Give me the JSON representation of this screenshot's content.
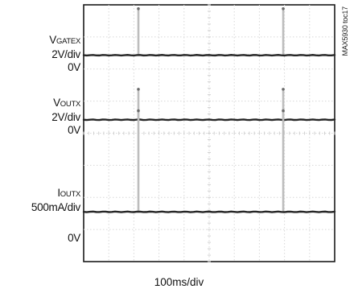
{
  "chart_data": {
    "type": "line",
    "figure_id": "MAX5930 toc17",
    "xlabel": "100ms/div",
    "grid": true,
    "grid_divisions": {
      "x": 10,
      "y": 8
    },
    "x_unit": "ms",
    "x_range": [
      0,
      1000
    ],
    "channels": [
      {
        "name": "VGATEX",
        "label_main": "V",
        "label_sub": "GATEX",
        "scale_label": "2V/div",
        "zero_label": "0V",
        "baseline_div": 1.57,
        "pulses": [
          {
            "t": 218,
            "height_div": 1.45
          },
          {
            "t": 795,
            "height_div": 1.45
          }
        ]
      },
      {
        "name": "VOUTX",
        "label_main": "V",
        "label_sub": "OUTX",
        "scale_label": "2V/div",
        "zero_label": "0V",
        "baseline_div": 3.58,
        "pulses": [
          {
            "t": 218,
            "height_div": 0.95
          },
          {
            "t": 795,
            "height_div": 0.95
          }
        ]
      },
      {
        "name": "IOUTX",
        "label_main": "I",
        "label_sub": "OUTX",
        "scale_label": "500mA/div",
        "zero_label": "0V",
        "baseline_div": 6.45,
        "pulses": [
          {
            "t": 218,
            "height_div": 3.15
          },
          {
            "t": 795,
            "height_div": 3.15
          }
        ]
      }
    ]
  }
}
